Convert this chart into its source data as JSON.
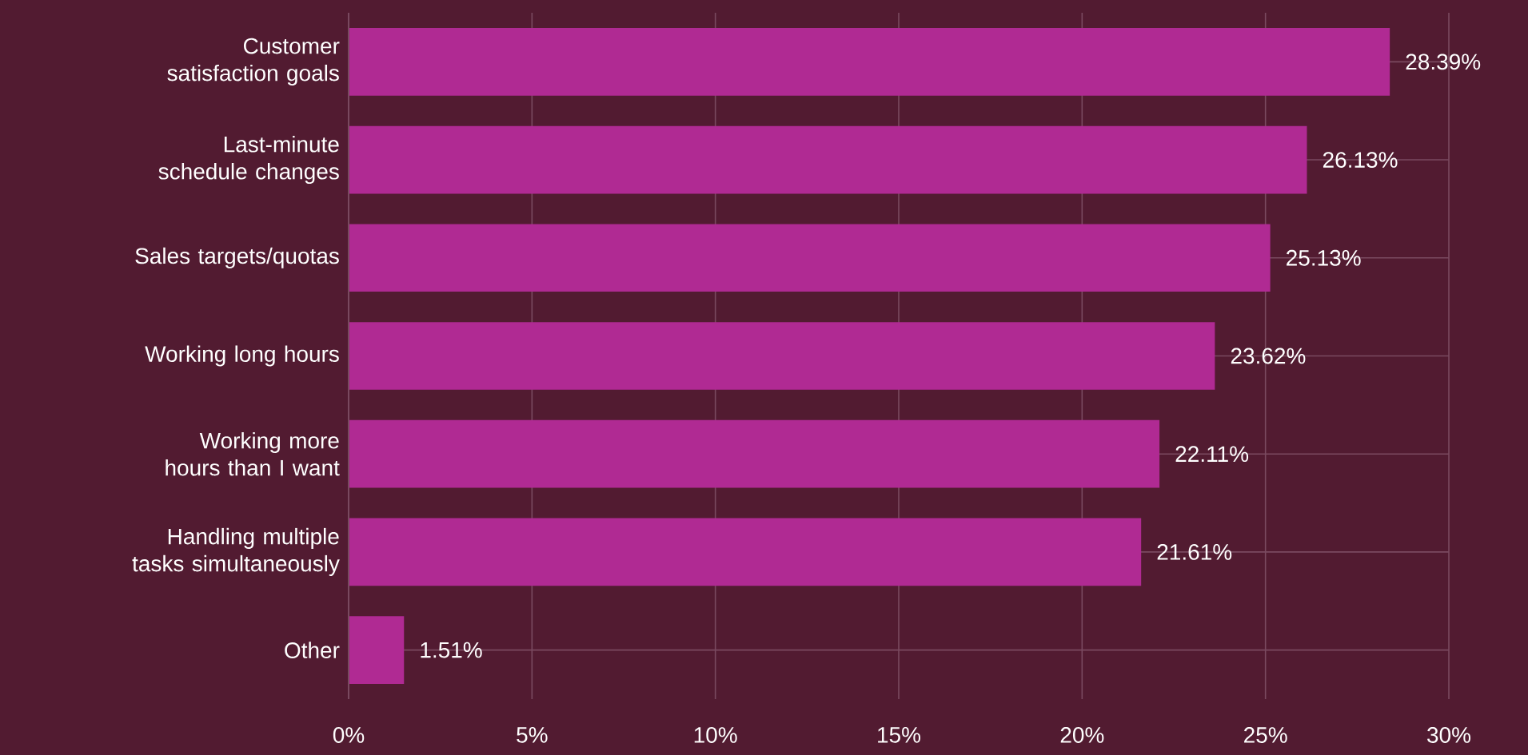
{
  "chart_data": {
    "type": "bar",
    "orientation": "horizontal",
    "categories": [
      "Customer satisfaction goals",
      "Last-minute schedule changes",
      "Sales targets/quotas",
      "Working long hours",
      "Working more hours than I want",
      "Handling multiple tasks simultaneously",
      "Other"
    ],
    "values": [
      28.39,
      26.13,
      25.13,
      23.62,
      22.11,
      21.61,
      1.51
    ],
    "value_labels": [
      "28.39%",
      "26.13%",
      "25.13%",
      "23.62%",
      "22.11%",
      "21.61%",
      "1.51%"
    ],
    "color": "#b02a93",
    "xlim": [
      0,
      30
    ],
    "xticks": [
      {
        "value": 0,
        "label": "0%"
      },
      {
        "value": 5,
        "label": "5%"
      },
      {
        "value": 10,
        "label": "10%"
      },
      {
        "value": 15,
        "label": "15%"
      },
      {
        "value": 20,
        "label": "20%"
      },
      {
        "value": 25,
        "label": "25%"
      },
      {
        "value": 30,
        "label": "30%"
      }
    ],
    "grid": true
  }
}
